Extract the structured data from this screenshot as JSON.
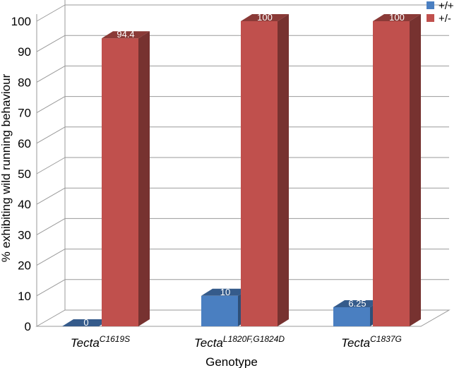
{
  "chart_data": {
    "type": "bar",
    "style": "3d-clustered",
    "categories": [
      {
        "base": "Tecta",
        "sup": "C1619S"
      },
      {
        "base": "Tecta",
        "sup": "L1820F,G1824D"
      },
      {
        "base": "Tecta",
        "sup": "C1837G"
      }
    ],
    "series": [
      {
        "name": "+/+",
        "values": [
          0,
          10,
          6.25
        ],
        "labels": [
          "0",
          "10",
          "6.25"
        ],
        "color": "#4a7fc1"
      },
      {
        "name": "+/-",
        "values": [
          94.4,
          100,
          100
        ],
        "labels": [
          "94.4",
          "100",
          "100"
        ],
        "color": "#c0504d"
      }
    ],
    "xlabel": "Genotype",
    "ylabel": "% exhibiting wild running behaviour",
    "ylim": [
      0,
      100
    ],
    "yticks": [
      "0",
      "10",
      "20",
      "30",
      "40",
      "50",
      "60",
      "70",
      "80",
      "90",
      "100"
    ],
    "grid": true,
    "legend_position": "top-right"
  }
}
